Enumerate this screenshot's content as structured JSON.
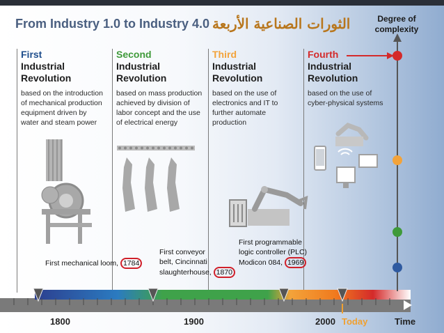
{
  "title": "From Industry 1.0 to Industry 4.0",
  "arabic_title": "الثورات الصناعية الأربعة",
  "degree_label": [
    "Degree of",
    "complexity"
  ],
  "revolutions": [
    {
      "num": "First",
      "head1": "Industrial",
      "head2": "Revolution",
      "desc": [
        "based on the introduction",
        "of mechanical production",
        "equipment driven by",
        "water and steam power"
      ],
      "color": "#1f4e8c"
    },
    {
      "num": "Second",
      "head1": "Industrial",
      "head2": "Revolution",
      "desc": [
        "based on mass production",
        "achieved by division of",
        "labor concept and the use",
        "of electrical energy"
      ],
      "color": "#3f9a3a"
    },
    {
      "num": "Third",
      "head1": "Industrial",
      "head2": "Revolution",
      "desc": [
        "based on the use of",
        "electronics and IT to",
        "further automate",
        "production"
      ],
      "color": "#f3a33a"
    },
    {
      "num": "Fourth",
      "head1": "Industrial",
      "head2": "Revolution",
      "desc": [
        "based on the use of",
        "cyber-physical systems"
      ],
      "color": "#d42a2a"
    }
  ],
  "events": [
    {
      "text": "First mechanical loom,",
      "year": "1784"
    },
    {
      "lines": [
        "First conveyor",
        "belt, Cincinnati",
        "slaughterhouse,"
      ],
      "year": "1870"
    },
    {
      "lines": [
        "First programmable",
        "logic controller (PLC)",
        "Modicon 084,"
      ],
      "year": "1969"
    }
  ],
  "axis": {
    "t1800": "1800",
    "t1900": "1900",
    "t2000": "2000",
    "today": "Today",
    "time": "Time"
  },
  "complexity_dots": [
    "#d42a2a",
    "#f3a33a",
    "#3f9a3a",
    "#2f5aa0"
  ]
}
